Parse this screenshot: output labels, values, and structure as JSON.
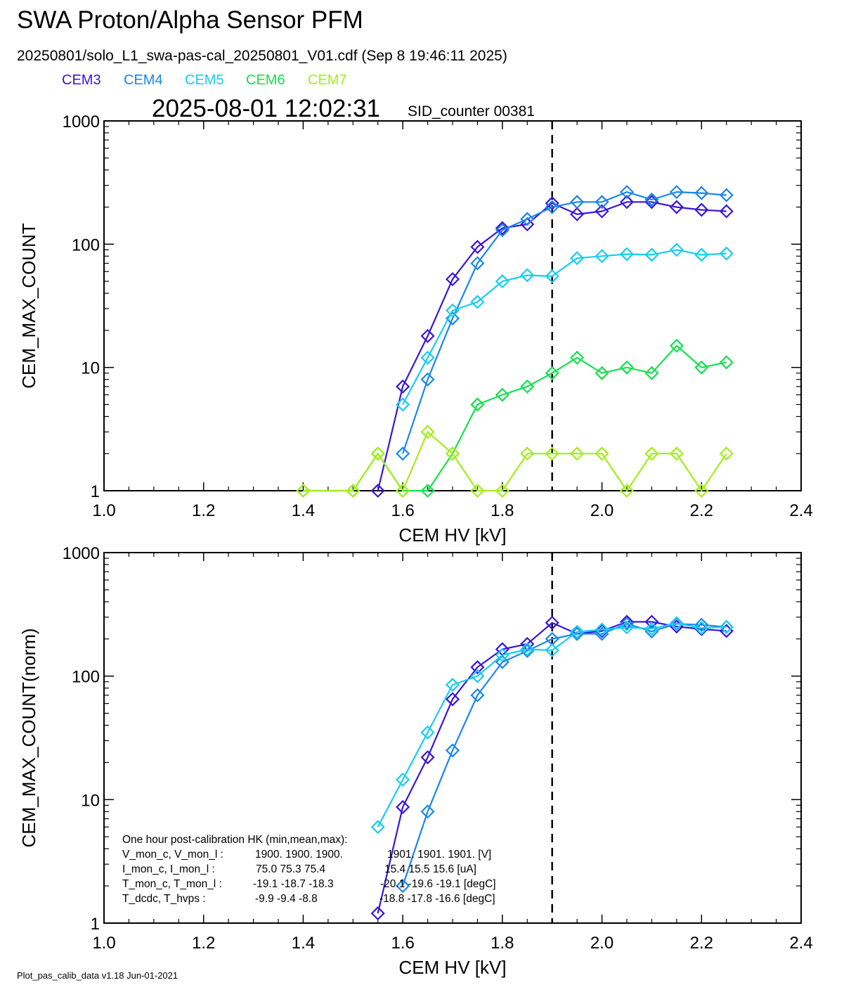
{
  "title": "SWA Proton/Alpha Sensor PFM",
  "subtitle": "20250801/solo_L1_swa-pas-cal_20250801_V01.cdf  (Sep  8 19:46:11 2025)",
  "timestamp": "2025-08-01 12:02:31",
  "sid_counter": "SID_counter 00381",
  "footer": "Plot_pas_calib_data v1.18 Jun-01-2021",
  "legend": [
    {
      "name": "CEM3",
      "color": "#3a16d6"
    },
    {
      "name": "CEM4",
      "color": "#1b86e8"
    },
    {
      "name": "CEM5",
      "color": "#18cdee"
    },
    {
      "name": "CEM6",
      "color": "#16e04d"
    },
    {
      "name": "CEM7",
      "color": "#a4ee18"
    }
  ],
  "hk": {
    "title": "One hour post-calibration HK (min,mean,max):",
    "rows": [
      {
        "label": "V_mon_c, V_mon_l :",
        "a": "1900.  1900.  1900.",
        "b": "1901.  1901.  1901.  [V]"
      },
      {
        "label": "I_mon_c,  I_mon_l :",
        "a": "75.0   75.3   75.4",
        "b": "15.4   15.5   15.6  [uA]"
      },
      {
        "label": "T_mon_c, T_mon_l :",
        "a": "-19.1   -18.7  -18.3",
        "b": "-20.1   -19.6  -19.1  [degC]"
      },
      {
        "label": "T_dcdc,    T_hvps :",
        "a": "-9.9   -9.4   -8.8",
        "b": "-18.8   -17.8   -16.6  [degC]"
      }
    ]
  },
  "chart_data": [
    {
      "type": "line",
      "xlabel": "CEM HV [kV]",
      "ylabel": "CEM_MAX_COUNT",
      "xlim": [
        1.0,
        2.4
      ],
      "ylim": [
        1,
        1000
      ],
      "yscale": "log",
      "xticks": [
        "1.0",
        "1.2",
        "1.4",
        "1.6",
        "1.8",
        "2.0",
        "2.2",
        "2.4"
      ],
      "yticks": [
        "1",
        "10",
        "100",
        "1000"
      ],
      "vline": 1.9,
      "series": [
        {
          "name": "CEM3",
          "color": "#3a16d6",
          "points": [
            [
              1.55,
              1
            ],
            [
              1.6,
              7
            ],
            [
              1.65,
              18
            ],
            [
              1.7,
              52
            ],
            [
              1.75,
              95
            ],
            [
              1.8,
              135
            ],
            [
              1.85,
              145
            ],
            [
              1.9,
              215
            ],
            [
              1.95,
              175
            ],
            [
              2.0,
              185
            ],
            [
              2.05,
              220
            ],
            [
              2.1,
              220
            ],
            [
              2.15,
              200
            ],
            [
              2.2,
              190
            ],
            [
              2.25,
              185
            ]
          ]
        },
        {
          "name": "CEM4",
          "color": "#1b86e8",
          "points": [
            [
              1.6,
              2
            ],
            [
              1.65,
              8
            ],
            [
              1.7,
              25
            ],
            [
              1.75,
              70
            ],
            [
              1.8,
              130
            ],
            [
              1.85,
              160
            ],
            [
              1.9,
              200
            ],
            [
              1.95,
              220
            ],
            [
              2.0,
              220
            ],
            [
              2.05,
              265
            ],
            [
              2.1,
              230
            ],
            [
              2.15,
              265
            ],
            [
              2.2,
              260
            ],
            [
              2.25,
              250
            ]
          ]
        },
        {
          "name": "CEM5",
          "color": "#18cdee",
          "points": [
            [
              1.6,
              5
            ],
            [
              1.65,
              12
            ],
            [
              1.7,
              29
            ],
            [
              1.75,
              34
            ],
            [
              1.8,
              50
            ],
            [
              1.85,
              56
            ],
            [
              1.9,
              55
            ],
            [
              1.95,
              77
            ],
            [
              2.0,
              80
            ],
            [
              2.05,
              83
            ],
            [
              2.1,
              82
            ],
            [
              2.15,
              90
            ],
            [
              2.2,
              82
            ],
            [
              2.25,
              84
            ]
          ]
        },
        {
          "name": "CEM6",
          "color": "#16e04d",
          "points": [
            [
              1.4,
              1
            ],
            [
              1.5,
              1
            ],
            [
              1.55,
              2
            ],
            [
              1.6,
              1
            ],
            [
              1.65,
              1
            ],
            [
              1.7,
              2
            ],
            [
              1.75,
              5
            ],
            [
              1.8,
              6
            ],
            [
              1.85,
              7
            ],
            [
              1.9,
              9
            ],
            [
              1.95,
              12
            ],
            [
              2.0,
              9
            ],
            [
              2.05,
              10
            ],
            [
              2.1,
              9
            ],
            [
              2.15,
              15
            ],
            [
              2.2,
              10
            ],
            [
              2.25,
              11
            ]
          ]
        },
        {
          "name": "CEM7",
          "color": "#a4ee18",
          "points": [
            [
              1.4,
              1
            ],
            [
              1.5,
              1
            ],
            [
              1.55,
              2
            ],
            [
              1.6,
              1
            ],
            [
              1.65,
              3
            ],
            [
              1.7,
              2
            ],
            [
              1.75,
              1
            ],
            [
              1.8,
              1
            ],
            [
              1.85,
              2
            ],
            [
              1.9,
              2
            ],
            [
              1.95,
              2
            ],
            [
              2.0,
              2
            ],
            [
              2.05,
              1
            ],
            [
              2.1,
              2
            ],
            [
              2.15,
              2
            ],
            [
              2.2,
              1
            ],
            [
              2.25,
              2
            ]
          ]
        }
      ]
    },
    {
      "type": "line",
      "xlabel": "CEM HV [kV]",
      "ylabel": "CEM_MAX_COUNT(norm)",
      "xlim": [
        1.0,
        2.4
      ],
      "ylim": [
        1,
        1000
      ],
      "yscale": "log",
      "xticks": [
        "1.0",
        "1.2",
        "1.4",
        "1.6",
        "1.8",
        "2.0",
        "2.2",
        "2.4"
      ],
      "yticks": [
        "1",
        "10",
        "100",
        "1000"
      ],
      "vline": 1.9,
      "series": [
        {
          "name": "CEM3",
          "color": "#3a16d6",
          "points": [
            [
              1.55,
              1.2
            ],
            [
              1.6,
              8.7
            ],
            [
              1.65,
              22
            ],
            [
              1.7,
              65
            ],
            [
              1.75,
              118
            ],
            [
              1.8,
              165
            ],
            [
              1.85,
              182
            ],
            [
              1.9,
              270
            ],
            [
              1.95,
              220
            ],
            [
              2.0,
              232
            ],
            [
              2.05,
              275
            ],
            [
              2.1,
              275
            ],
            [
              2.15,
              252
            ],
            [
              2.2,
              240
            ],
            [
              2.25,
              232
            ]
          ]
        },
        {
          "name": "CEM4",
          "color": "#1b86e8",
          "points": [
            [
              1.6,
              2
            ],
            [
              1.65,
              8
            ],
            [
              1.7,
              25
            ],
            [
              1.75,
              70
            ],
            [
              1.8,
              130
            ],
            [
              1.85,
              160
            ],
            [
              1.9,
              200
            ],
            [
              1.95,
              220
            ],
            [
              2.0,
              220
            ],
            [
              2.05,
              265
            ],
            [
              2.1,
              230
            ],
            [
              2.15,
              265
            ],
            [
              2.2,
              260
            ],
            [
              2.25,
              250
            ]
          ]
        },
        {
          "name": "CEM5",
          "color": "#18cdee",
          "points": [
            [
              1.55,
              6
            ],
            [
              1.6,
              14.5
            ],
            [
              1.65,
              35
            ],
            [
              1.7,
              85
            ],
            [
              1.75,
              100
            ],
            [
              1.8,
              148
            ],
            [
              1.85,
              165
            ],
            [
              1.9,
              162
            ],
            [
              1.95,
              228
            ],
            [
              2.0,
              238
            ],
            [
              2.05,
              248
            ],
            [
              2.1,
              242
            ],
            [
              2.15,
              268
            ],
            [
              2.2,
              245
            ],
            [
              2.25,
              250
            ]
          ]
        }
      ]
    }
  ]
}
